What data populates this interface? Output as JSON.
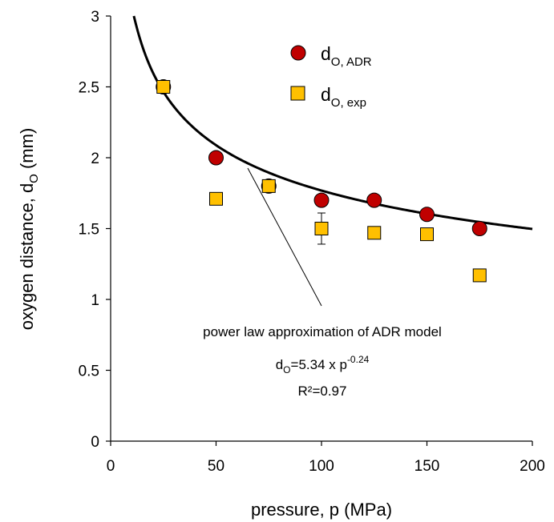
{
  "chart_data": {
    "type": "scatter",
    "xlabel": "pressure, p (MPa)",
    "ylabel_main": "oxygen distance, d",
    "ylabel_sub": "O",
    "ylabel_tail": " (mm)",
    "xlim": [
      0,
      200
    ],
    "ylim": [
      0,
      3
    ],
    "x_ticks": [
      0,
      50,
      100,
      150,
      200
    ],
    "y_ticks": [
      0,
      0.5,
      1,
      1.5,
      2,
      2.5,
      3
    ],
    "y_tick_labels": [
      "0",
      "0.5",
      "1",
      "1.5",
      "2",
      "2.5",
      "3"
    ],
    "grid": false,
    "legend_position": "top-right",
    "series": [
      {
        "name_main": "d",
        "name_sub": "O, ADR",
        "marker": "circle",
        "color": "#c00000",
        "x": [
          25,
          50,
          75,
          100,
          125,
          150,
          175
        ],
        "y": [
          2.5,
          2.0,
          1.8,
          1.7,
          1.7,
          1.6,
          1.5
        ]
      },
      {
        "name_main": "d",
        "name_sub": "O, exp",
        "marker": "square",
        "color": "#ffc000",
        "x": [
          25,
          50,
          75,
          100,
          125,
          150,
          175
        ],
        "y": [
          2.5,
          1.71,
          1.8,
          1.5,
          1.47,
          1.46,
          1.17
        ],
        "error": [
          0,
          0,
          0,
          0.11,
          0,
          0,
          0
        ]
      }
    ],
    "fit_curve": {
      "coefficient": 5.34,
      "exponent": -0.24,
      "x_range": [
        11,
        200
      ],
      "color": "#000000"
    },
    "annotation": {
      "line1": "power law approximation of ADR model",
      "eq_pre": "d",
      "eq_sub": "O",
      "eq_mid": "=5.34 x p",
      "eq_sup": "-0.24",
      "r2": "R²=0.97"
    }
  }
}
